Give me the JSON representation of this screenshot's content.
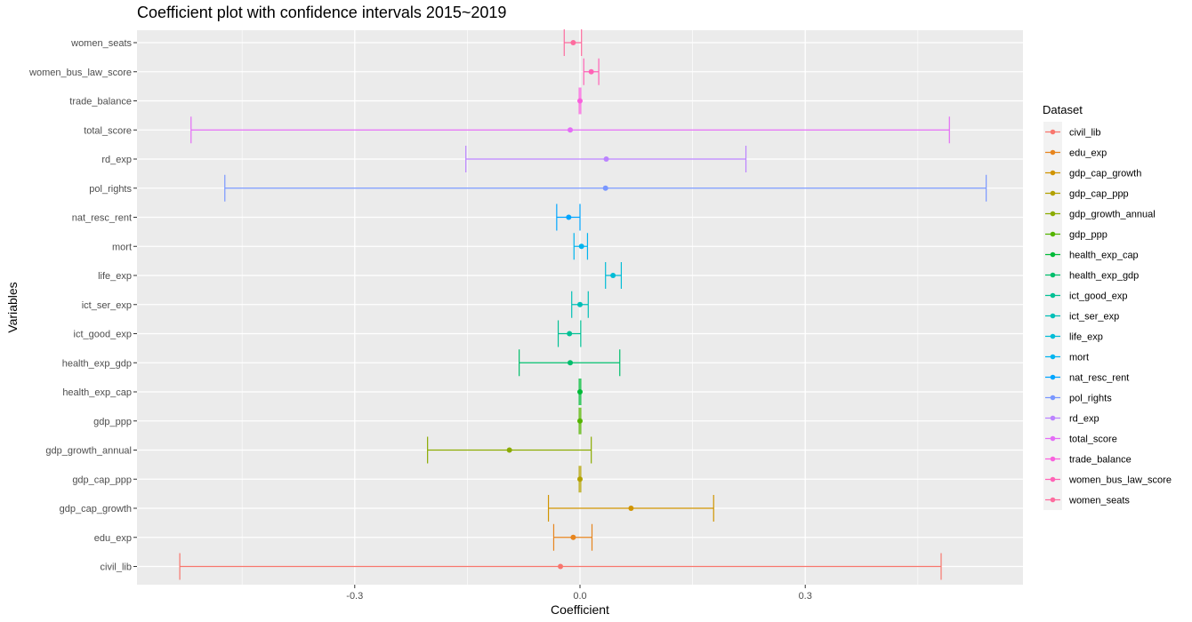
{
  "chart_data": {
    "type": "errorbar",
    "title": "Coefficient plot with confidence intervals 2015~2019",
    "xlabel": "Coefficient",
    "ylabel": "Variables",
    "xlim": [
      -0.59,
      0.59
    ],
    "xticks": [
      -0.3,
      0,
      0.3
    ],
    "xtick_labels": [
      "-0.3",
      "0.0",
      "0.3"
    ],
    "grid": true,
    "legend": {
      "title": "Dataset",
      "position": "right"
    },
    "variables": [
      "civil_lib",
      "edu_exp",
      "gdp_cap_growth",
      "gdp_cap_ppp",
      "gdp_growth_annual",
      "gdp_ppp",
      "health_exp_cap",
      "health_exp_gdp",
      "ict_good_exp",
      "ict_ser_exp",
      "life_exp",
      "mort",
      "nat_resc_rent",
      "pol_rights",
      "rd_exp",
      "total_score",
      "trade_balance",
      "women_bus_law_score",
      "women_seats"
    ],
    "series": [
      {
        "name": "civil_lib",
        "color": "#F8766D",
        "estimate": -0.026,
        "lower": -0.533,
        "upper": 0.481
      },
      {
        "name": "edu_exp",
        "color": "#E7851E",
        "estimate": -0.009,
        "lower": -0.035,
        "upper": 0.016
      },
      {
        "name": "gdp_cap_growth",
        "color": "#D09400",
        "estimate": 0.068,
        "lower": -0.042,
        "upper": 0.178
      },
      {
        "name": "gdp_cap_ppp",
        "color": "#B2A100",
        "estimate": 0.0,
        "lower": -0.001,
        "upper": 0.001
      },
      {
        "name": "gdp_growth_annual",
        "color": "#8BAB00",
        "estimate": -0.094,
        "lower": -0.203,
        "upper": 0.015
      },
      {
        "name": "gdp_ppp",
        "color": "#55B400",
        "estimate": 0.0,
        "lower": -0.001,
        "upper": 0.001
      },
      {
        "name": "health_exp_cap",
        "color": "#00BA38",
        "estimate": 0.0,
        "lower": -0.001,
        "upper": 0.001
      },
      {
        "name": "health_exp_gdp",
        "color": "#00BE6C",
        "estimate": -0.013,
        "lower": -0.081,
        "upper": 0.053
      },
      {
        "name": "ict_good_exp",
        "color": "#00C094",
        "estimate": -0.014,
        "lower": -0.029,
        "upper": 0.001
      },
      {
        "name": "ict_ser_exp",
        "color": "#00BFB7",
        "estimate": 0.0,
        "lower": -0.011,
        "upper": 0.011
      },
      {
        "name": "life_exp",
        "color": "#00BCD6",
        "estimate": 0.044,
        "lower": 0.034,
        "upper": 0.055
      },
      {
        "name": "mort",
        "color": "#00B4EF",
        "estimate": 0.002,
        "lower": -0.008,
        "upper": 0.01
      },
      {
        "name": "nat_resc_rent",
        "color": "#00A5FF",
        "estimate": -0.015,
        "lower": -0.031,
        "upper": 0.0
      },
      {
        "name": "pol_rights",
        "color": "#7997FF",
        "estimate": 0.034,
        "lower": -0.473,
        "upper": 0.541
      },
      {
        "name": "rd_exp",
        "color": "#BB83FF",
        "estimate": 0.035,
        "lower": -0.152,
        "upper": 0.221
      },
      {
        "name": "total_score",
        "color": "#E46DF6",
        "estimate": -0.013,
        "lower": -0.518,
        "upper": 0.492
      },
      {
        "name": "trade_balance",
        "color": "#F962DD",
        "estimate": 0.0,
        "lower": -0.001,
        "upper": 0.001
      },
      {
        "name": "women_bus_law_score",
        "color": "#FF63B6",
        "estimate": 0.015,
        "lower": 0.005,
        "upper": 0.025
      },
      {
        "name": "women_seats",
        "color": "#FD6C9E",
        "estimate": -0.009,
        "lower": -0.021,
        "upper": 0.002
      }
    ]
  }
}
